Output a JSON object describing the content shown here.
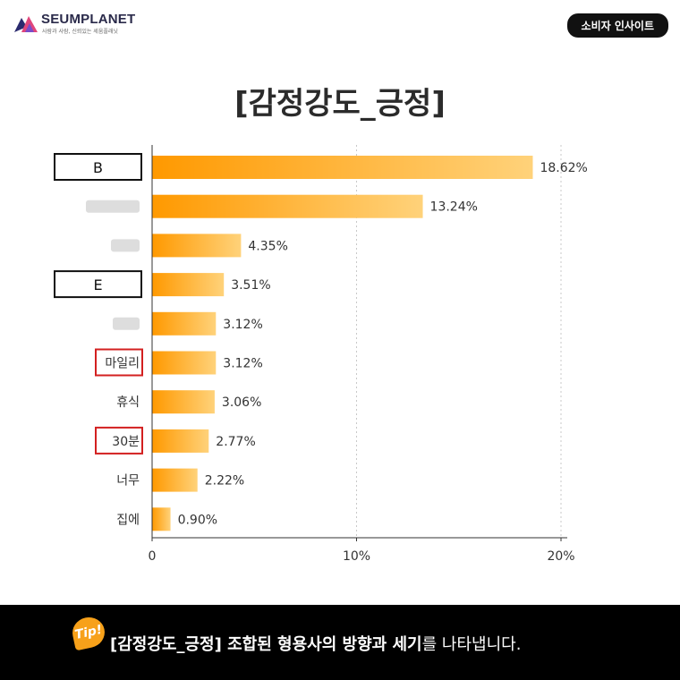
{
  "brand": {
    "name": "SEUMPLANET",
    "tagline": "사람과 사람, 신뢰있는 세움플래닛"
  },
  "badge": {
    "label": "소비자 인사이트"
  },
  "chart_data": {
    "type": "bar",
    "orientation": "horizontal",
    "title": "[감정강도_긍정]",
    "categories": [
      "B",
      "",
      "",
      "E",
      "",
      "마일리",
      "휴식",
      "30분",
      "너무",
      "집에"
    ],
    "values": [
      18.62,
      13.24,
      4.35,
      3.51,
      3.12,
      3.12,
      3.06,
      2.77,
      2.22,
      0.9
    ],
    "value_labels": [
      "18.62%",
      "13.24%",
      "4.35%",
      "3.51%",
      "3.12%",
      "3.12%",
      "3.06%",
      "2.77%",
      "2.22%",
      "0.90%"
    ],
    "category_styles": [
      "black-box",
      "blurred",
      "blurred",
      "black-box",
      "blurred",
      "red-box",
      "plain",
      "red-box",
      "plain",
      "plain"
    ],
    "xlim": [
      0,
      20
    ],
    "xticks": [
      0,
      10,
      20
    ],
    "xtick_labels": [
      "0",
      "10%",
      "20%"
    ],
    "grid": "vertical dashed at 10 and 20",
    "bar_gradient": [
      "#ff9900",
      "#ffd27a"
    ],
    "highlight_box_color": "#d32020"
  },
  "footer": {
    "tip_label": "Tip!",
    "bold_part": "[감정강도_긍정] 조합된 형용사의 방향과 세기",
    "rest_part": "를 나타냅니다."
  }
}
